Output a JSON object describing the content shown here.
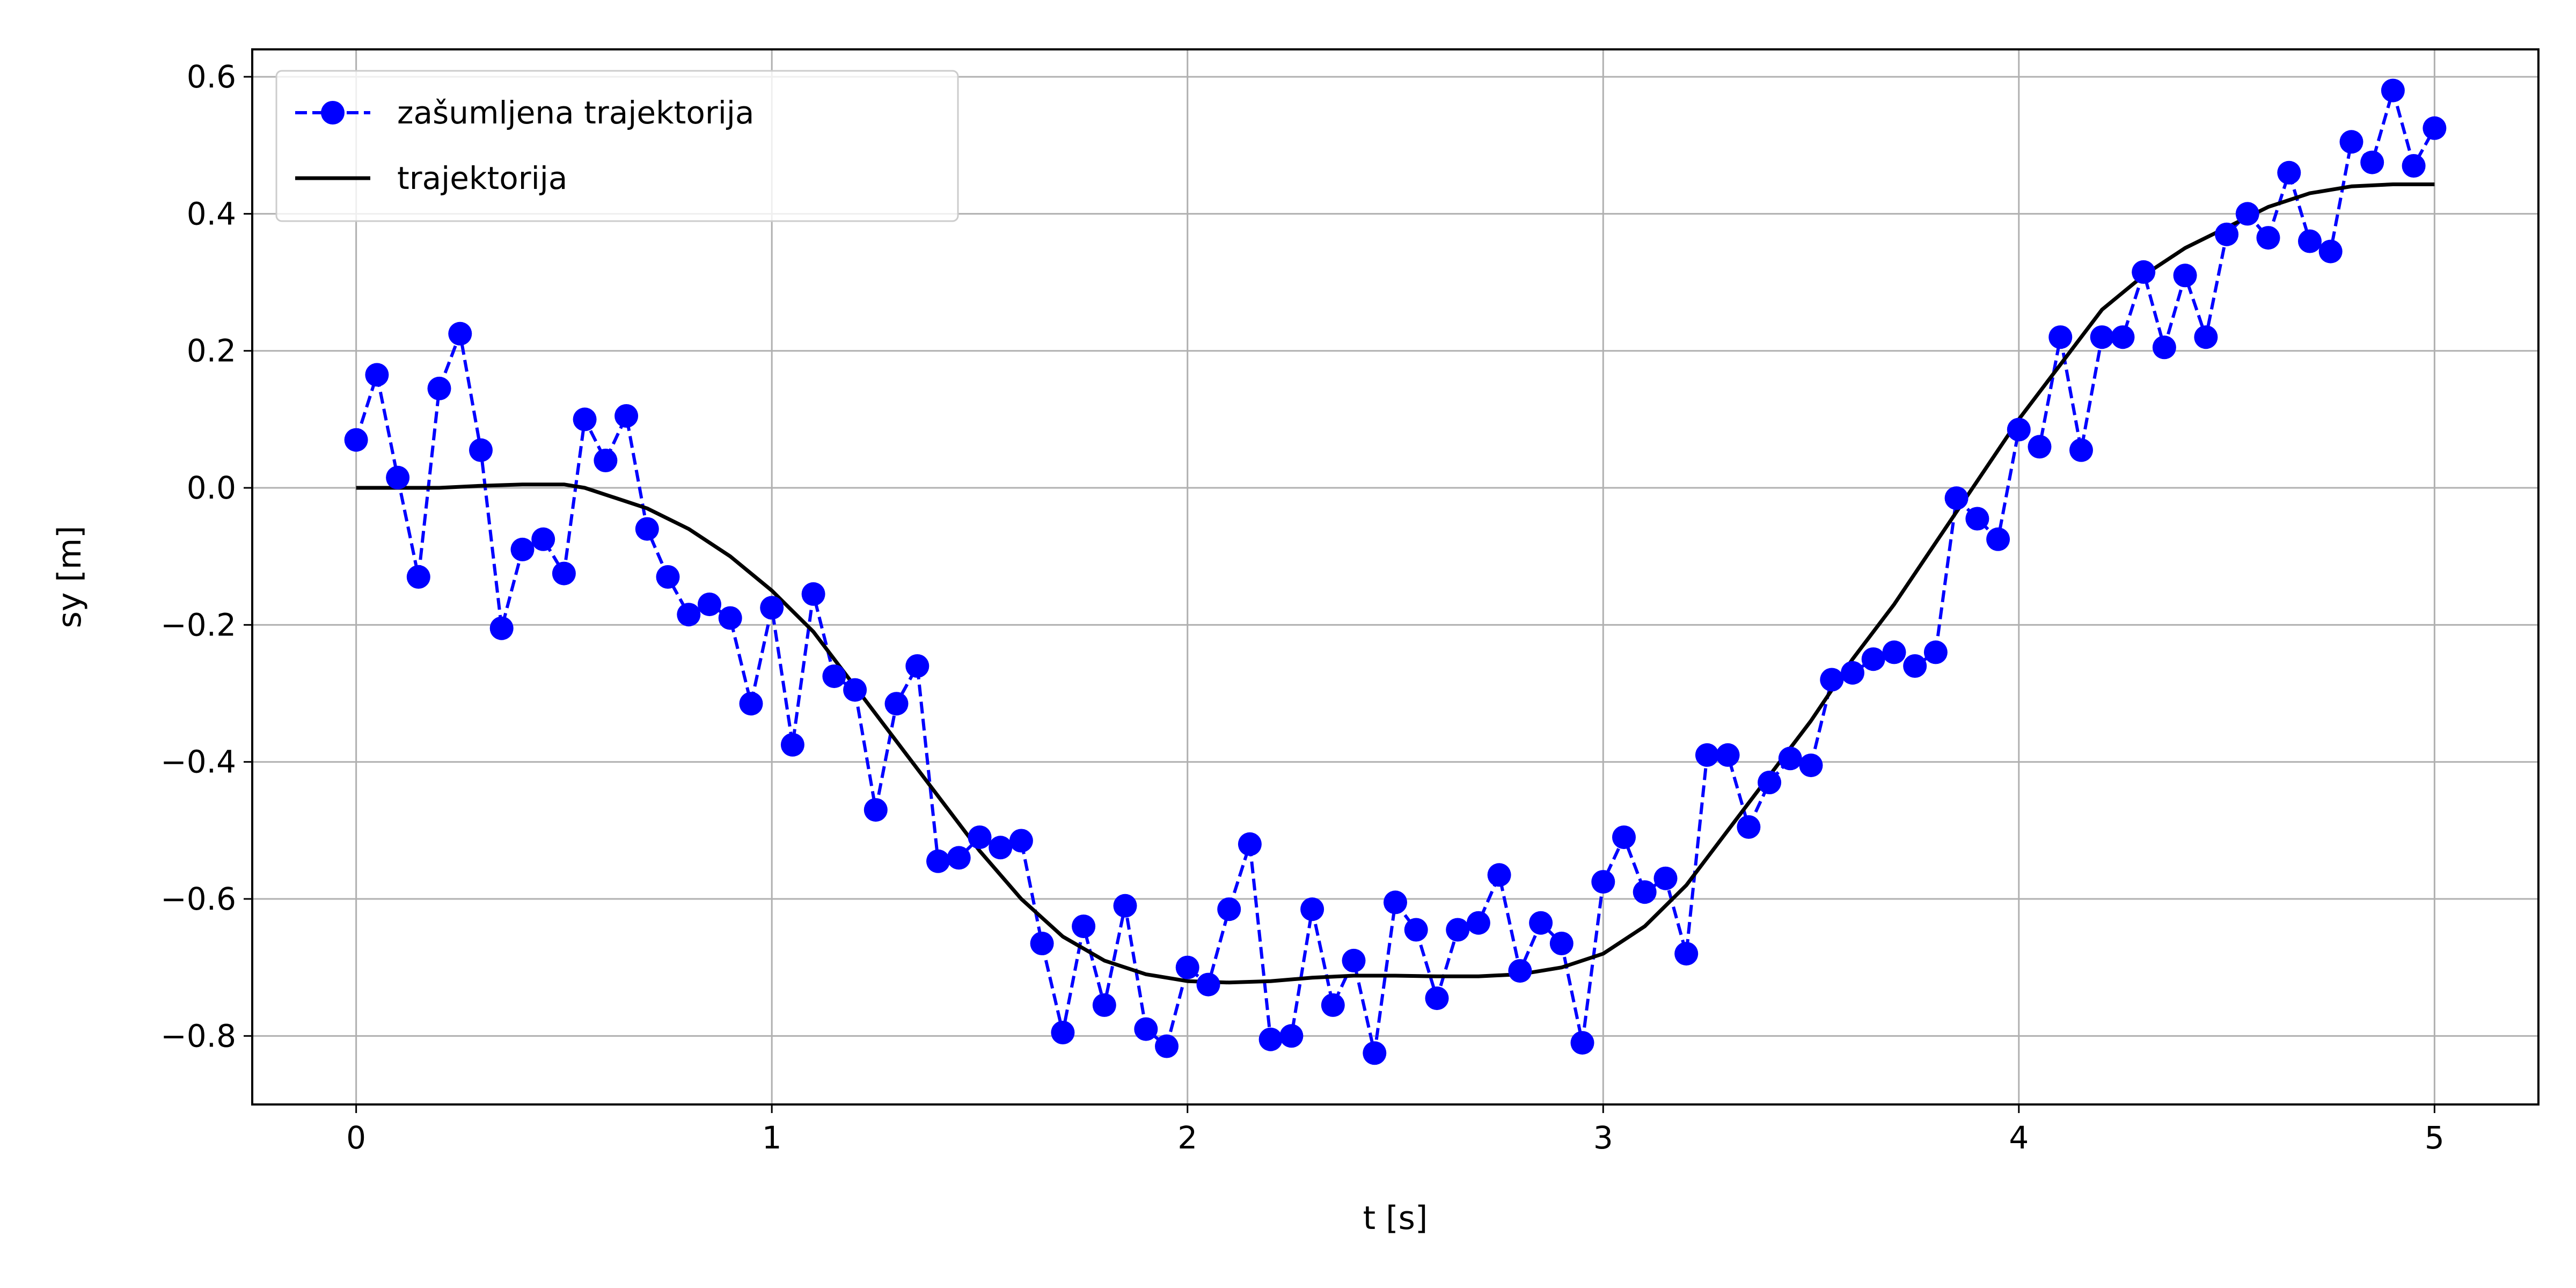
{
  "chart_data": {
    "type": "line",
    "title": "",
    "xlabel": "t [s]",
    "ylabel": "sy [m]",
    "xlim": [
      -0.25,
      5.25
    ],
    "ylim": [
      -0.9,
      0.64
    ],
    "xticks": [
      0,
      1,
      2,
      3,
      4,
      5
    ],
    "yticks": [
      0.6,
      0.4,
      0.2,
      0.0,
      -0.2,
      -0.4,
      -0.6,
      -0.8
    ],
    "ytick_labels": [
      "0.6",
      "0.4",
      "0.2",
      "0.0",
      "−0.2",
      "−0.4",
      "−0.6",
      "−0.8"
    ],
    "grid": true,
    "legend_position": "top-left",
    "series": [
      {
        "name": "zašumljena trajektorija",
        "color": "#0000ff",
        "style": "dashed-with-markers",
        "x": [
          0.0,
          0.05,
          0.1,
          0.15,
          0.2,
          0.25,
          0.3,
          0.35,
          0.4,
          0.45,
          0.5,
          0.55,
          0.6,
          0.65,
          0.7,
          0.75,
          0.8,
          0.85,
          0.9,
          0.95,
          1.0,
          1.05,
          1.1,
          1.15,
          1.2,
          1.25,
          1.3,
          1.35,
          1.4,
          1.45,
          1.5,
          1.55,
          1.6,
          1.65,
          1.7,
          1.75,
          1.8,
          1.85,
          1.9,
          1.95,
          2.0,
          2.05,
          2.1,
          2.15,
          2.2,
          2.25,
          2.3,
          2.35,
          2.4,
          2.45,
          2.5,
          2.55,
          2.6,
          2.65,
          2.7,
          2.75,
          2.8,
          2.85,
          2.9,
          2.95,
          3.0,
          3.05,
          3.1,
          3.15,
          3.2,
          3.25,
          3.3,
          3.35,
          3.4,
          3.45,
          3.5,
          3.55,
          3.6,
          3.65,
          3.7,
          3.75,
          3.8,
          3.85,
          3.9,
          3.95,
          4.0,
          4.05,
          4.1,
          4.15,
          4.2,
          4.25,
          4.3,
          4.35,
          4.4,
          4.45,
          4.5,
          4.55,
          4.6,
          4.65,
          4.7,
          4.75,
          4.8,
          4.85,
          4.9,
          4.95,
          5.0
        ],
        "y": [
          0.07,
          0.165,
          0.015,
          -0.13,
          0.145,
          0.225,
          0.055,
          -0.205,
          -0.09,
          -0.075,
          -0.125,
          0.1,
          0.04,
          0.105,
          -0.06,
          -0.13,
          -0.185,
          -0.17,
          -0.19,
          -0.315,
          -0.175,
          -0.375,
          -0.155,
          -0.275,
          -0.295,
          -0.47,
          -0.315,
          -0.26,
          -0.545,
          -0.54,
          -0.51,
          -0.525,
          -0.515,
          -0.665,
          -0.795,
          -0.64,
          -0.755,
          -0.61,
          -0.79,
          -0.815,
          -0.7,
          -0.725,
          -0.615,
          -0.52,
          -0.805,
          -0.8,
          -0.615,
          -0.755,
          -0.69,
          -0.825,
          -0.605,
          -0.645,
          -0.745,
          -0.645,
          -0.635,
          -0.565,
          -0.705,
          -0.635,
          -0.665,
          -0.81,
          -0.575,
          -0.51,
          -0.59,
          -0.57,
          -0.68,
          -0.39,
          -0.39,
          -0.495,
          -0.43,
          -0.395,
          -0.405,
          -0.28,
          -0.27,
          -0.25,
          -0.24,
          -0.26,
          -0.24,
          -0.015,
          -0.045,
          -0.075,
          0.085,
          0.06,
          0.22,
          0.055,
          0.22,
          0.22,
          0.315,
          0.205,
          0.31,
          0.22,
          0.37,
          0.4,
          0.365,
          0.46,
          0.36,
          0.345,
          0.505,
          0.475,
          0.58,
          0.47,
          0.525
        ]
      },
      {
        "name": "trajektorija",
        "color": "#000000",
        "style": "solid",
        "x": [
          0.0,
          0.1,
          0.2,
          0.3,
          0.4,
          0.5,
          0.55,
          0.6,
          0.7,
          0.8,
          0.9,
          1.0,
          1.1,
          1.2,
          1.3,
          1.4,
          1.5,
          1.6,
          1.7,
          1.8,
          1.9,
          2.0,
          2.1,
          2.2,
          2.3,
          2.4,
          2.5,
          2.6,
          2.7,
          2.8,
          2.9,
          3.0,
          3.1,
          3.2,
          3.3,
          3.4,
          3.5,
          3.6,
          3.7,
          3.8,
          3.9,
          4.0,
          4.1,
          4.2,
          4.3,
          4.4,
          4.5,
          4.6,
          4.7,
          4.8,
          4.9,
          5.0
        ],
        "y": [
          0.0,
          0.0,
          0.0,
          0.003,
          0.005,
          0.005,
          0.0,
          -0.01,
          -0.03,
          -0.06,
          -0.1,
          -0.15,
          -0.21,
          -0.29,
          -0.37,
          -0.45,
          -0.53,
          -0.6,
          -0.655,
          -0.69,
          -0.71,
          -0.72,
          -0.722,
          -0.72,
          -0.715,
          -0.712,
          -0.712,
          -0.713,
          -0.713,
          -0.71,
          -0.7,
          -0.68,
          -0.64,
          -0.58,
          -0.5,
          -0.42,
          -0.34,
          -0.25,
          -0.17,
          -0.08,
          0.01,
          0.1,
          0.18,
          0.26,
          0.31,
          0.35,
          0.38,
          0.41,
          0.43,
          0.44,
          0.443,
          0.443
        ]
      }
    ]
  }
}
